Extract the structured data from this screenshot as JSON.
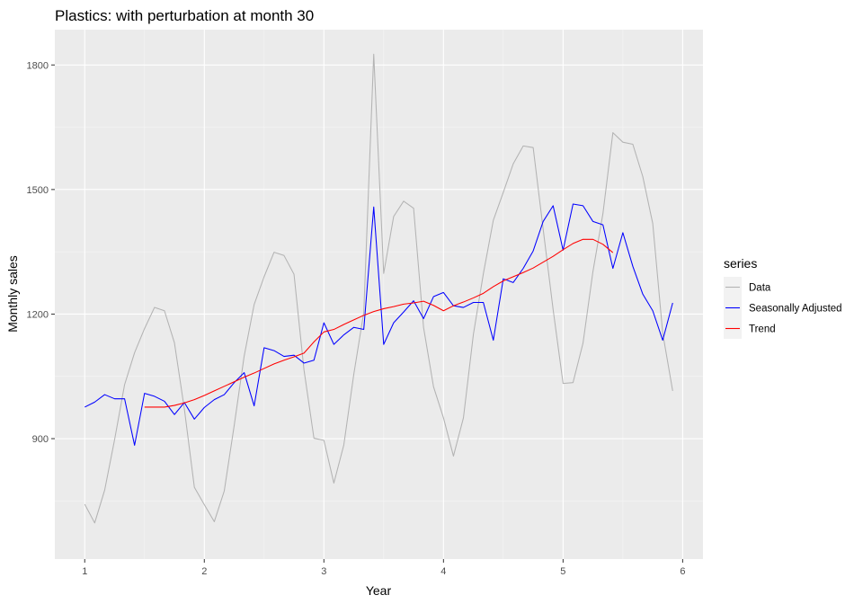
{
  "chart_data": {
    "type": "line",
    "title": "Plastics: with perturbation at month 30",
    "xlabel": "Year",
    "ylabel": "Monthly sales",
    "xlim": [
      0.75,
      6.17
    ],
    "ylim": [
      610,
      1885
    ],
    "xticks": [
      1,
      2,
      3,
      4,
      5,
      6
    ],
    "yticks": [
      900,
      1200,
      1500,
      1800
    ],
    "grid": true,
    "panel_background": "#ebebeb",
    "legend": {
      "title": "series",
      "position": "right"
    },
    "series": [
      {
        "name": "Data",
        "color": "#b3b3b3",
        "x": [
          1.0,
          1.0833,
          1.1667,
          1.25,
          1.3333,
          1.4167,
          1.5,
          1.5833,
          1.6667,
          1.75,
          1.8333,
          1.9167,
          2.0,
          2.0833,
          2.1667,
          2.25,
          2.3333,
          2.4167,
          2.5,
          2.5833,
          2.6667,
          2.75,
          2.8333,
          2.9167,
          3.0,
          3.0833,
          3.1667,
          3.25,
          3.3333,
          3.4167,
          3.5,
          3.5833,
          3.6667,
          3.75,
          3.8333,
          3.9167,
          4.0,
          4.0833,
          4.1667,
          4.25,
          4.3333,
          4.4167,
          4.5,
          4.5833,
          4.6667,
          4.75,
          4.8333,
          4.9167,
          5.0,
          5.0833,
          5.1667,
          5.25,
          5.3333,
          5.4167,
          5.5,
          5.5833,
          5.6667,
          5.75,
          5.8333,
          5.9167
        ],
        "values": [
          742,
          697,
          776,
          898,
          1030,
          1107,
          1165,
          1216,
          1208,
          1131,
          971,
          783,
          741,
          700,
          774,
          932,
          1099,
          1223,
          1290,
          1349,
          1341,
          1296,
          1066,
          901,
          896,
          793,
          885,
          1055,
          1204,
          1826,
          1298,
          1435,
          1472,
          1455,
          1168,
          1025,
          950,
          858,
          950,
          1151,
          1297,
          1426,
          1493,
          1562,
          1605,
          1601,
          1405,
          1211,
          1033,
          1035,
          1130,
          1303,
          1442,
          1637,
          1614,
          1609,
          1531,
          1418,
          1154,
          1015
        ]
      },
      {
        "name": "Seasonally Adjusted",
        "color": "#0000ff",
        "x": [
          1.0,
          1.0833,
          1.1667,
          1.25,
          1.3333,
          1.4167,
          1.5,
          1.5833,
          1.6667,
          1.75,
          1.8333,
          1.9167,
          2.0,
          2.0833,
          2.1667,
          2.25,
          2.3333,
          2.4167,
          2.5,
          2.5833,
          2.6667,
          2.75,
          2.8333,
          2.9167,
          3.0,
          3.0833,
          3.1667,
          3.25,
          3.3333,
          3.4167,
          3.5,
          3.5833,
          3.6667,
          3.75,
          3.8333,
          3.9167,
          4.0,
          4.0833,
          4.1667,
          4.25,
          4.3333,
          4.4167,
          4.5,
          4.5833,
          4.6667,
          4.75,
          4.8333,
          4.9167,
          5.0,
          5.0833,
          5.1667,
          5.25,
          5.3333,
          5.4167,
          5.5,
          5.5833,
          5.6667,
          5.75,
          5.8333,
          5.9167
        ],
        "values": [
          976,
          988,
          1006,
          996,
          996,
          884,
          1009,
          1002,
          990,
          958,
          987,
          947,
          975,
          994,
          1006,
          1035,
          1059,
          979,
          1119,
          1112,
          1098,
          1101,
          1082,
          1089,
          1179,
          1127,
          1150,
          1168,
          1163,
          1458,
          1127,
          1179,
          1205,
          1232,
          1189,
          1242,
          1252,
          1220,
          1216,
          1228,
          1228,
          1137,
          1285,
          1276,
          1310,
          1352,
          1423,
          1461,
          1354,
          1465,
          1461,
          1423,
          1415,
          1310,
          1396,
          1315,
          1248,
          1208,
          1137,
          1227
        ]
      },
      {
        "name": "Trend",
        "color": "#ff0000",
        "x": [
          1.5,
          1.5833,
          1.6667,
          1.75,
          1.8333,
          1.9167,
          2.0,
          2.0833,
          2.1667,
          2.25,
          2.3333,
          2.4167,
          2.5,
          2.5833,
          2.6667,
          2.75,
          2.8333,
          2.9167,
          3.0,
          3.0833,
          3.1667,
          3.25,
          3.3333,
          3.4167,
          3.5,
          3.5833,
          3.6667,
          3.75,
          3.8333,
          3.9167,
          4.0,
          4.0833,
          4.1667,
          4.25,
          4.3333,
          4.4167,
          4.5,
          4.5833,
          4.6667,
          4.75,
          4.8333,
          4.9167,
          5.0,
          5.0833,
          5.1667,
          5.25,
          5.3333,
          5.4167
        ],
        "values": [
          976,
          976,
          976,
          980,
          986,
          994,
          1004,
          1015,
          1026,
          1037,
          1048,
          1058,
          1069,
          1080,
          1089,
          1097,
          1106,
          1133,
          1157,
          1163,
          1175,
          1186,
          1197,
          1206,
          1213,
          1218,
          1224,
          1227,
          1231,
          1221,
          1208,
          1220,
          1229,
          1239,
          1250,
          1266,
          1280,
          1290,
          1300,
          1311,
          1325,
          1339,
          1355,
          1370,
          1380,
          1380,
          1368,
          1348
        ]
      }
    ]
  }
}
